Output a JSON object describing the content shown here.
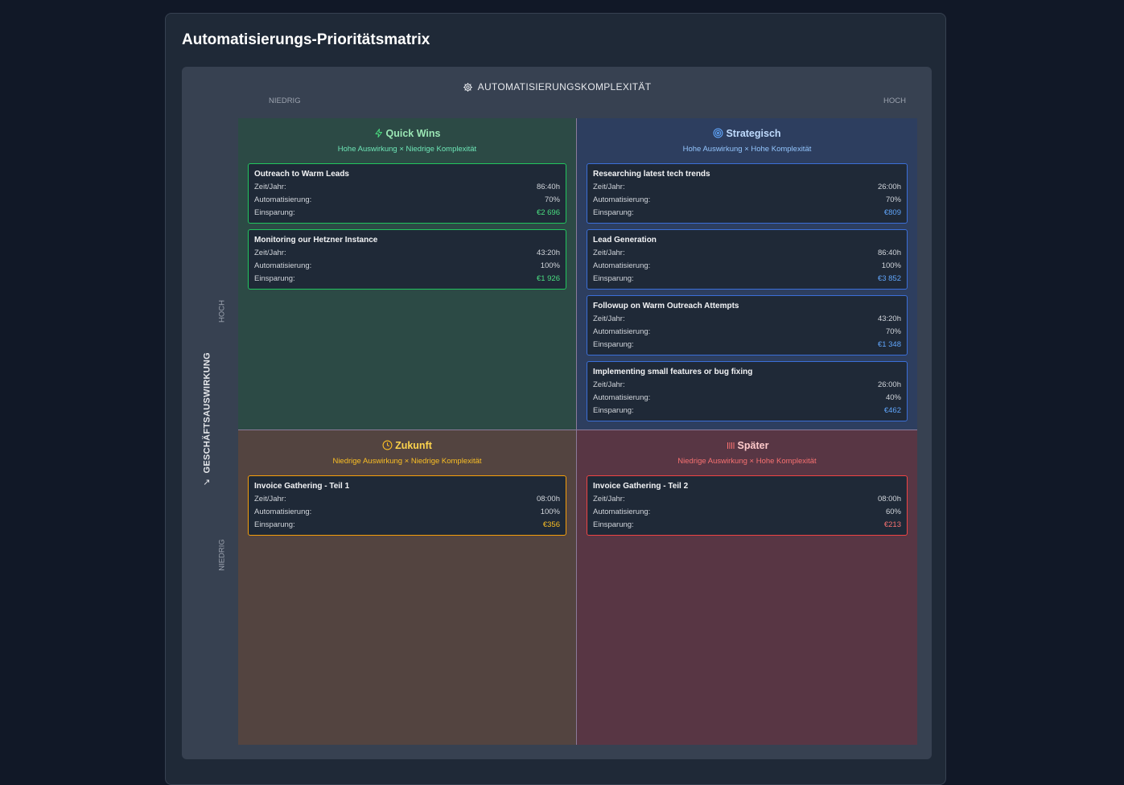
{
  "page": {
    "title": "Automatisierungs-Prioritätsmatrix"
  },
  "axes": {
    "x": {
      "title": "Automatisierungskomplexität",
      "low": "Niedrig",
      "high": "Hoch",
      "icon": "gear-icon"
    },
    "y": {
      "title": "Geschäftsauswirkung",
      "low": "Niedrig",
      "high": "Hoch",
      "icon": "trend-icon"
    }
  },
  "labels": {
    "time": "Zeit/Jahr:",
    "automation": "Automatisierung:",
    "savings": "Einsparung:"
  },
  "quadrants": {
    "quick_wins": {
      "title": "Quick Wins",
      "subtitle": "Hohe Auswirkung × Niedrige Komplexität",
      "icon": "lightning-icon",
      "color": "#22c55e",
      "items": [
        {
          "name": "Outreach to Warm Leads",
          "time": "86:40h",
          "automation": "70%",
          "savings": "€2 696"
        },
        {
          "name": "Monitoring our Hetzner Instance",
          "time": "43:20h",
          "automation": "100%",
          "savings": "€1 926"
        }
      ]
    },
    "strategic": {
      "title": "Strategisch",
      "subtitle": "Hohe Auswirkung × Hohe Komplexität",
      "icon": "target-icon",
      "color": "#3b82f6",
      "items": [
        {
          "name": "Researching latest tech trends",
          "time": "26:00h",
          "automation": "70%",
          "savings": "€809"
        },
        {
          "name": "Lead Generation",
          "time": "86:40h",
          "automation": "100%",
          "savings": "€3 852"
        },
        {
          "name": "Followup on Warm Outreach Attempts",
          "time": "43:20h",
          "automation": "70%",
          "savings": "€1 348"
        },
        {
          "name": "Implementing small features or bug fixing",
          "time": "26:00h",
          "automation": "40%",
          "savings": "€462"
        }
      ]
    },
    "future": {
      "title": "Zukunft",
      "subtitle": "Niedrige Auswirkung × Niedrige Komplexität",
      "icon": "clock-icon",
      "color": "#f59e0b",
      "items": [
        {
          "name": "Invoice Gathering - Teil 1",
          "time": "08:00h",
          "automation": "100%",
          "savings": "€356"
        }
      ]
    },
    "later": {
      "title": "Später",
      "subtitle": "Niedrige Auswirkung × Hohe Komplexität",
      "icon": "pause-icon",
      "color": "#ef4444",
      "items": [
        {
          "name": "Invoice Gathering - Teil 2",
          "time": "08:00h",
          "automation": "60%",
          "savings": "€213"
        }
      ]
    }
  }
}
